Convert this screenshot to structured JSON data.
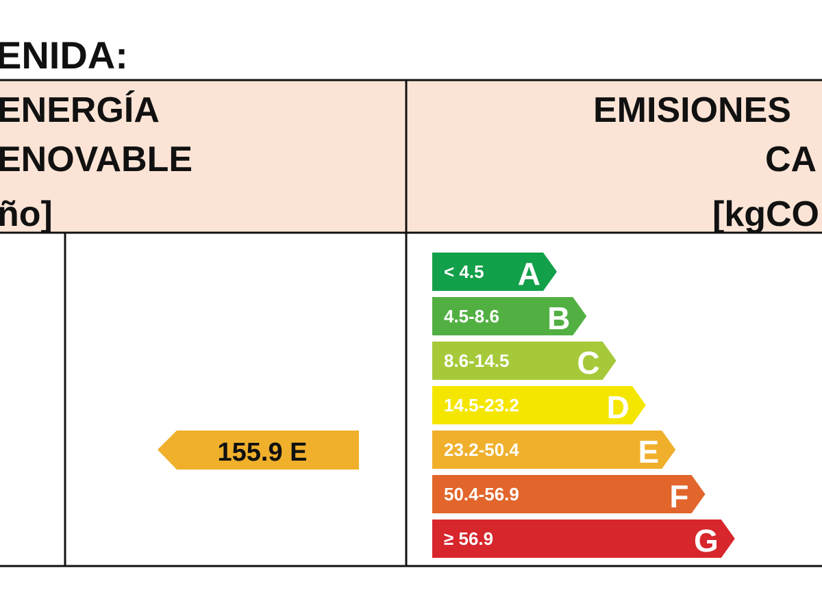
{
  "title": "ENIDA:",
  "header": {
    "left": [
      "ENERGÍA",
      "ENOVABLE",
      "ño]"
    ],
    "right": [
      "EMISIONES",
      "CA",
      "[kgCO"
    ]
  },
  "scale": [
    {
      "range": "< 4.5",
      "letter": "A"
    },
    {
      "range": "4.5-8.6",
      "letter": "B"
    },
    {
      "range": "8.6-14.5",
      "letter": "C"
    },
    {
      "range": "14.5-23.2",
      "letter": "D"
    },
    {
      "range": "23.2-50.4",
      "letter": "E"
    },
    {
      "range": "50.4-56.9",
      "letter": "F"
    },
    {
      "range": "≥ 56.9",
      "letter": "G"
    }
  ],
  "rating": "155.9 E"
}
